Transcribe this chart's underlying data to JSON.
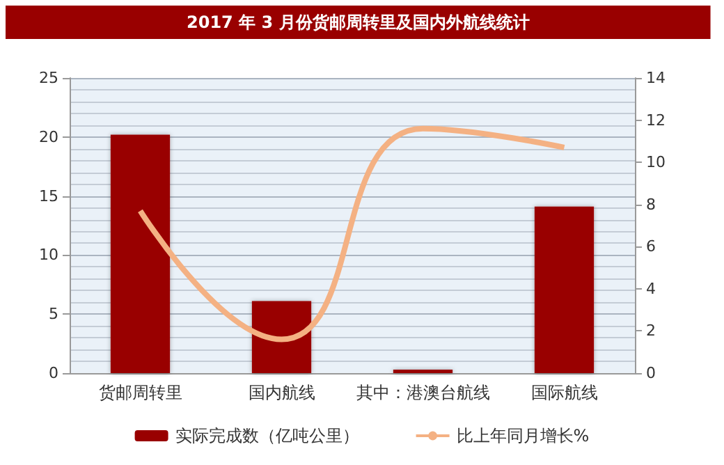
{
  "chart_data": {
    "type": "bar",
    "title": "2017 年 3 月份货邮周转里及国内外航线统计",
    "categories": [
      "货邮周转里",
      "国内航线",
      "其中：港澳台航线",
      "国际航线"
    ],
    "series": [
      {
        "name": "实际完成数（亿吨公里）",
        "color": "#990000",
        "values": [
          20.2,
          6.1,
          0.3,
          14.1
        ]
      },
      {
        "name": "比上年同月增长%",
        "type": "line",
        "axis": "y2",
        "color": "#f4b183",
        "values": [
          7.7,
          1.6,
          11.6,
          10.7
        ]
      }
    ],
    "ylim": [
      0,
      25
    ],
    "yticks": [
      0,
      5,
      10,
      15,
      20,
      25
    ],
    "y2lim": [
      0,
      14
    ],
    "y2ticks": [
      0,
      2,
      4,
      6,
      8,
      10,
      12,
      14
    ],
    "grid": "y",
    "legend": "bottom",
    "marker": "none"
  }
}
